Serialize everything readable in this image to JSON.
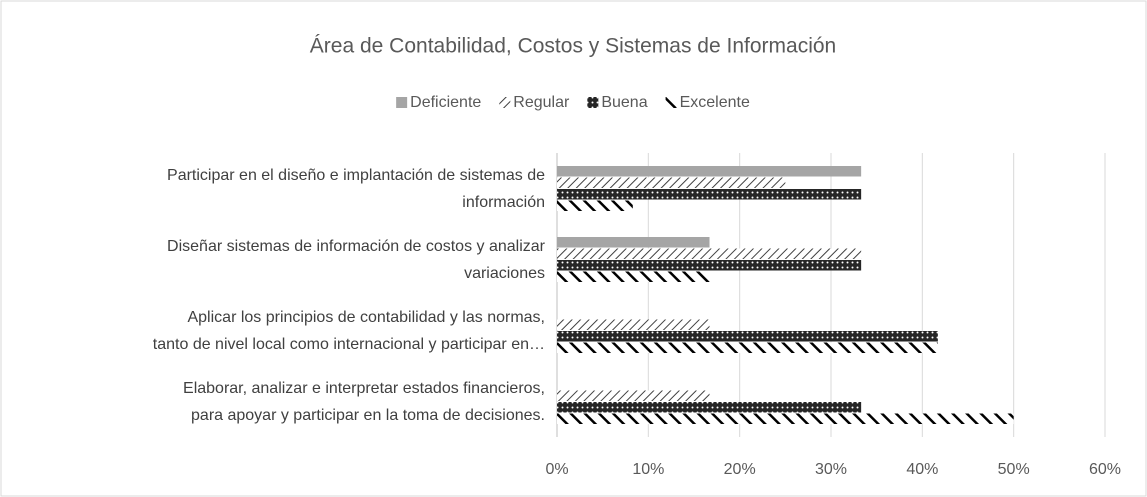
{
  "chart_data": {
    "type": "barh",
    "title": "Área de Contabilidad, Costos y Sistemas de Información",
    "categories": [
      "Participar en el diseño e implantación de sistemas de\ninformación",
      "Diseñar sistemas de información de costos y analizar\nvariaciones",
      "Aplicar los principios de contabilidad y las normas,\ntanto de nivel local como internacional y participar en…",
      "Elaborar, analizar e interpretar estados financieros,\npara apoyar y participar en la toma de decisiones."
    ],
    "series": [
      {
        "name": "Deficiente",
        "color": "#a5a5a5",
        "values": [
          33.3,
          16.7,
          0,
          0
        ]
      },
      {
        "name": "Regular",
        "color": "#404040",
        "values": [
          25,
          33.3,
          16.7,
          16.7
        ]
      },
      {
        "name": "Buena",
        "color": "#262626",
        "values": [
          33.3,
          33.3,
          41.7,
          33.3
        ]
      },
      {
        "name": "Excelente",
        "color": "#000000",
        "values": [
          8.3,
          16.7,
          41.7,
          50
        ]
      }
    ],
    "xlim": [
      0,
      60
    ],
    "xticks": [
      {
        "value": 0,
        "label": "0%"
      },
      {
        "value": 10,
        "label": "10%"
      },
      {
        "value": 20,
        "label": "20%"
      },
      {
        "value": 30,
        "label": "30%"
      },
      {
        "value": 40,
        "label": "40%"
      },
      {
        "value": 50,
        "label": "50%"
      },
      {
        "value": 60,
        "label": "60%"
      }
    ],
    "grid": true,
    "legend": "top"
  }
}
